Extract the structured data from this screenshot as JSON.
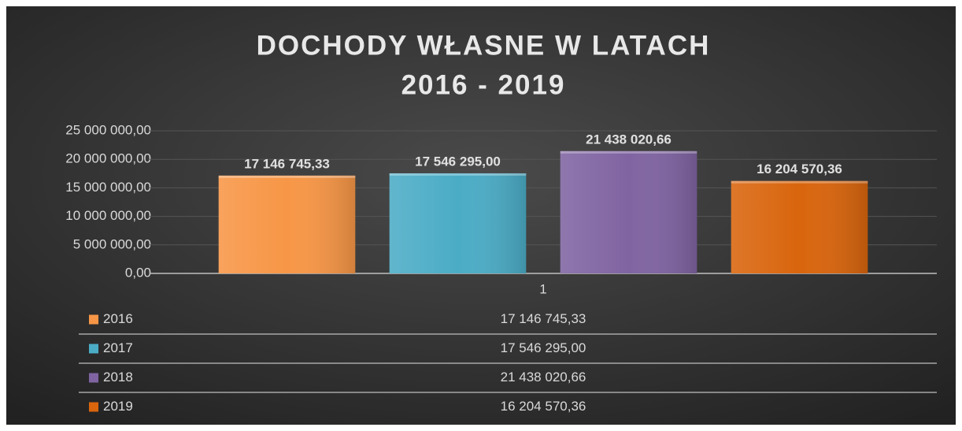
{
  "chart_data": {
    "type": "bar",
    "title": "DOCHODY WŁASNE W LATACH",
    "subtitle": "2016 - 2019",
    "categories": [
      "1"
    ],
    "series": [
      {
        "name": "2016",
        "color": "#f79646",
        "values": [
          17146745.33
        ],
        "value_labels": [
          "17 146 745,33"
        ]
      },
      {
        "name": "2017",
        "color": "#4bacc6",
        "values": [
          17546295.0
        ],
        "value_labels": [
          "17 546 295,00"
        ]
      },
      {
        "name": "2018",
        "color": "#8064a2",
        "values": [
          21438020.66
        ],
        "value_labels": [
          "21 438 020,66"
        ]
      },
      {
        "name": "2019",
        "color": "#d9650d",
        "values": [
          16204570.36
        ],
        "value_labels": [
          "16 204 570,36"
        ]
      }
    ],
    "ylim": [
      0,
      25000000
    ],
    "yticks": [
      {
        "value": 0,
        "label": "0,00"
      },
      {
        "value": 5000000,
        "label": "5 000 000,00"
      },
      {
        "value": 10000000,
        "label": "10 000 000,00"
      },
      {
        "value": 15000000,
        "label": "15 000 000,00"
      },
      {
        "value": 20000000,
        "label": "20 000 000,00"
      },
      {
        "value": 25000000,
        "label": "25 000 000,00"
      }
    ],
    "grid": true,
    "data_table": true
  }
}
